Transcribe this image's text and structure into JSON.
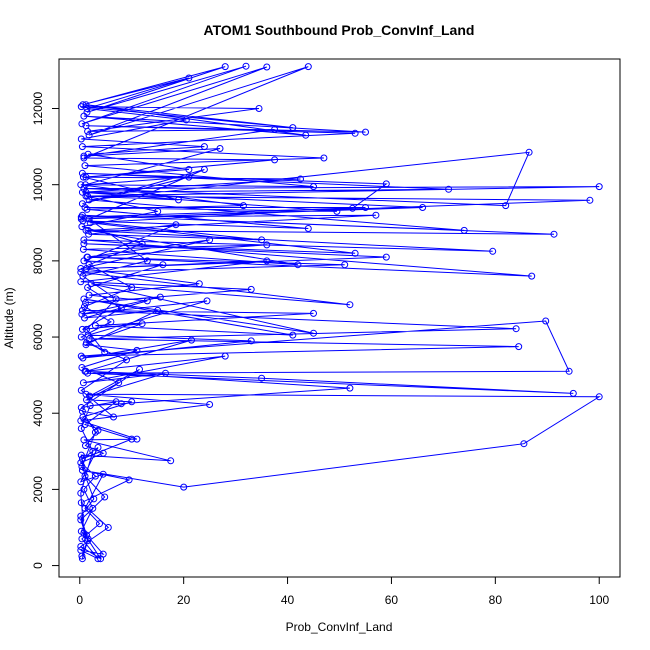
{
  "chart_data": {
    "type": "line",
    "title": "ATOM1 Southbound Prob_ConvInf_Land",
    "xlabel": "Prob_ConvInf_Land",
    "ylabel": "Altitude (m)",
    "xlim": [
      -4,
      104
    ],
    "ylim": [
      -300,
      13300
    ],
    "xticks": [
      0,
      20,
      40,
      60,
      80,
      100
    ],
    "yticks": [
      0,
      2000,
      4000,
      6000,
      8000,
      10000,
      12000
    ],
    "grid": false,
    "markers": "open-circle",
    "color": "#0000FF",
    "series": [
      {
        "points": [
          [
            0.5,
            180
          ],
          [
            1.5,
            650
          ],
          [
            0.2,
            1200
          ],
          [
            4.8,
            1800
          ],
          [
            1,
            2350
          ],
          [
            0.3,
            2900
          ],
          [
            17.5,
            2750
          ],
          [
            0.8,
            3300
          ],
          [
            11,
            3320
          ],
          [
            0.2,
            3800
          ],
          [
            25,
            4230
          ],
          [
            1.2,
            4500
          ],
          [
            100,
            4430
          ],
          [
            85.5,
            3200
          ],
          [
            20,
            2060
          ],
          [
            0.5,
            2500
          ],
          [
            9.5,
            2250
          ],
          [
            0.3,
            1650
          ],
          [
            5.5,
            1000
          ],
          [
            0.2,
            500
          ],
          [
            4,
            180
          ],
          [
            0.8,
            850
          ],
          [
            0.2,
            1900
          ],
          [
            2.5,
            3000
          ],
          [
            0.3,
            3600
          ],
          [
            2,
            4200
          ],
          [
            8,
            4250
          ],
          [
            52,
            4660
          ],
          [
            1,
            5100
          ],
          [
            35,
            4920
          ],
          [
            95,
            4520
          ],
          [
            1.5,
            5050
          ],
          [
            94.2,
            5100
          ],
          [
            89.7,
            6420
          ],
          [
            0.3,
            5500
          ],
          [
            84.5,
            5750
          ],
          [
            1.8,
            5950
          ],
          [
            84,
            6220
          ],
          [
            0.5,
            6700
          ],
          [
            45,
            6620
          ],
          [
            3,
            6300
          ],
          [
            41,
            6050
          ],
          [
            0.8,
            7000
          ],
          [
            45,
            6100
          ],
          [
            2.2,
            7400
          ],
          [
            52,
            6850
          ],
          [
            0.2,
            7700
          ],
          [
            51,
            7900
          ],
          [
            1.5,
            8100
          ],
          [
            87,
            7600
          ],
          [
            0.8,
            8550
          ],
          [
            79.5,
            8250
          ],
          [
            1.2,
            8800
          ],
          [
            91.3,
            8700
          ],
          [
            0.5,
            9200
          ],
          [
            74,
            8800
          ],
          [
            1.8,
            9600
          ],
          [
            86.5,
            10850
          ],
          [
            82,
            9450
          ],
          [
            0.8,
            9900
          ],
          [
            100,
            9950
          ],
          [
            1.5,
            9700
          ],
          [
            98.2,
            9590
          ],
          [
            0.3,
            9100
          ],
          [
            66,
            9400
          ],
          [
            1.2,
            9800
          ],
          [
            71,
            9880
          ],
          [
            0.5,
            10300
          ],
          [
            59,
            10020
          ],
          [
            52.5,
            9380
          ],
          [
            2,
            9000
          ],
          [
            53,
            8200
          ],
          [
            0.8,
            8450
          ],
          [
            59,
            8100
          ],
          [
            1.3,
            7800
          ],
          [
            36,
            8000
          ],
          [
            0.2,
            7450
          ],
          [
            33,
            7250
          ],
          [
            1.1,
            6900
          ],
          [
            15.5,
            7050
          ],
          [
            0.4,
            6600
          ],
          [
            24.5,
            6950
          ],
          [
            1.6,
            6050
          ],
          [
            33,
            5900
          ],
          [
            0.6,
            5450
          ],
          [
            21.5,
            5920
          ],
          [
            1.2,
            5100
          ],
          [
            28,
            5500
          ],
          [
            0.7,
            4800
          ],
          [
            16.5,
            5050
          ],
          [
            1.9,
            4450
          ],
          [
            11.5,
            5150
          ],
          [
            0.3,
            4150
          ],
          [
            7,
            4300
          ],
          [
            1,
            3700
          ],
          [
            10,
            3320
          ],
          [
            0.5,
            2800
          ],
          [
            3.5,
            3100
          ],
          [
            0.2,
            2200
          ],
          [
            4.5,
            2400
          ],
          [
            1,
            1500
          ],
          [
            3.8,
            1100
          ],
          [
            0.4,
            700
          ],
          [
            3.5,
            180
          ],
          [
            0.2,
            400
          ],
          [
            4.5,
            300
          ],
          [
            1.3,
            800
          ],
          [
            0.2,
            1300
          ],
          [
            2.7,
            1750
          ],
          [
            0.4,
            2600
          ],
          [
            3,
            3500
          ],
          [
            0.5,
            4050
          ],
          [
            6.5,
            3900
          ],
          [
            0.3,
            4600
          ],
          [
            9,
            5400
          ],
          [
            1.3,
            5850
          ],
          [
            12,
            6350
          ],
          [
            0.5,
            6200
          ],
          [
            8,
            6750
          ],
          [
            1.5,
            7300
          ],
          [
            16,
            7900
          ],
          [
            0.8,
            8000
          ],
          [
            18.5,
            8950
          ],
          [
            1.7,
            8700
          ],
          [
            35,
            8550
          ],
          [
            0.6,
            9050
          ],
          [
            44,
            8850
          ],
          [
            1.4,
            9350
          ],
          [
            31.5,
            9450
          ],
          [
            0.2,
            10000
          ],
          [
            45,
            9950
          ],
          [
            1,
            10500
          ],
          [
            47,
            10700
          ],
          [
            0.5,
            11000
          ],
          [
            53,
            11350
          ],
          [
            1.2,
            11550
          ],
          [
            55,
            11380
          ],
          [
            0.8,
            11800
          ],
          [
            43.5,
            11300
          ],
          [
            1.2,
            12100
          ],
          [
            41,
            11500
          ],
          [
            0.3,
            12050
          ],
          [
            34.5,
            12000
          ],
          [
            1.5,
            11400
          ],
          [
            37.5,
            11450
          ],
          [
            0.8,
            10750
          ],
          [
            27,
            10950
          ],
          [
            1.1,
            10000
          ],
          [
            21,
            10200
          ],
          [
            0.5,
            9500
          ],
          [
            24,
            10400
          ],
          [
            1.8,
            9100
          ],
          [
            13,
            8000
          ],
          [
            0.6,
            7600
          ],
          [
            7,
            7000
          ],
          [
            1.3,
            6200
          ],
          [
            4.8,
            5600
          ],
          [
            0.3,
            6000
          ],
          [
            6,
            6400
          ],
          [
            0.9,
            6800
          ],
          [
            10,
            7300
          ],
          [
            1.8,
            7900
          ],
          [
            12,
            8450
          ],
          [
            0.4,
            8900
          ],
          [
            15,
            9300
          ],
          [
            1.2,
            9700
          ],
          [
            19,
            9600
          ],
          [
            0.7,
            10200
          ],
          [
            21,
            10400
          ],
          [
            1.6,
            10800
          ],
          [
            24,
            11000
          ],
          [
            0.3,
            11200
          ],
          [
            20.5,
            11700
          ],
          [
            1.4,
            12000
          ],
          [
            21,
            12800
          ],
          [
            0.6,
            12100
          ],
          [
            28,
            13100
          ],
          [
            1.4,
            11900
          ],
          [
            32,
            13110
          ],
          [
            0.4,
            11600
          ],
          [
            36,
            13090
          ],
          [
            1.8,
            11300
          ],
          [
            44,
            13100
          ],
          [
            0.8,
            10700
          ],
          [
            37.5,
            10650
          ],
          [
            1.2,
            10200
          ],
          [
            42.5,
            10150
          ],
          [
            0.5,
            9800
          ],
          [
            49.5,
            9300
          ],
          [
            1,
            9400
          ],
          [
            55,
            9400
          ],
          [
            0.3,
            9150
          ],
          [
            57,
            9200
          ],
          [
            1.6,
            8800
          ],
          [
            42,
            7900
          ],
          [
            0.7,
            8300
          ],
          [
            36,
            8420
          ],
          [
            1.4,
            8100
          ],
          [
            25,
            8550
          ],
          [
            0.2,
            7800
          ],
          [
            23,
            7400
          ],
          [
            1.8,
            7100
          ],
          [
            13,
            6950
          ],
          [
            0.9,
            6500
          ],
          [
            15,
            6700
          ],
          [
            1.2,
            5800
          ],
          [
            11,
            5650
          ],
          [
            0.4,
            5200
          ],
          [
            7.5,
            4800
          ],
          [
            1.3,
            4350
          ],
          [
            10,
            4300
          ],
          [
            0.6,
            3900
          ],
          [
            3.5,
            3550
          ],
          [
            1.1,
            3150
          ],
          [
            4.5,
            2950
          ],
          [
            0.2,
            2700
          ],
          [
            3,
            2350
          ],
          [
            0.8,
            2000
          ],
          [
            2.5,
            1500
          ],
          [
            0.3,
            900
          ],
          [
            1.6,
            700
          ],
          [
            0.4,
            250
          ]
        ]
      }
    ]
  }
}
